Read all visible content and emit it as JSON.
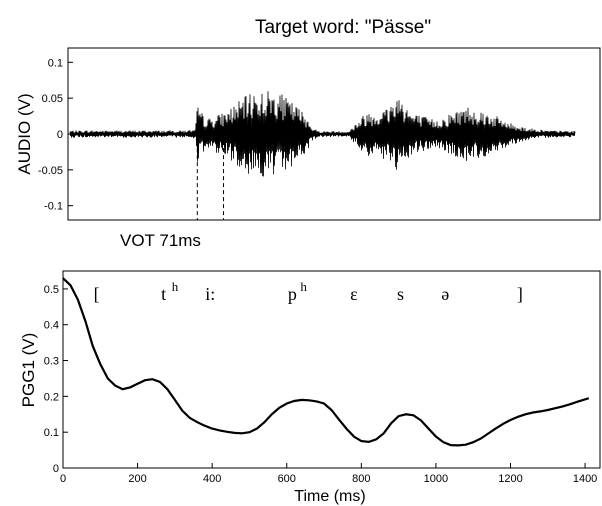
{
  "chart_data": [
    {
      "type": "line",
      "title": "Target word: \"Pässe\"",
      "xlabel": "",
      "ylabel": "AUDIO (V)",
      "ylim": [
        -0.12,
        0.12
      ],
      "yticks": [
        -0.1,
        -0.05,
        0,
        0.05,
        0.1
      ],
      "ytick_labels": [
        "-0.1",
        "-0.05",
        "0",
        "0.05",
        "0.1"
      ],
      "xlim": [
        0,
        1440
      ],
      "grid": false,
      "annotation": "VOT 71ms",
      "vot_markers_ms": [
        350,
        421
      ],
      "envelope": {
        "t": [
          0,
          300,
          345,
          350,
          365,
          380,
          420,
          460,
          500,
          560,
          600,
          640,
          665,
          680,
          690,
          760,
          790,
          810,
          840,
          870,
          890,
          905,
          930,
          980,
          1000,
          1030,
          1080,
          1140,
          1200,
          1250,
          1300,
          1380,
          1440
        ],
        "amp": [
          0.005,
          0.005,
          0.006,
          0.04,
          0.028,
          0.022,
          0.03,
          0.045,
          0.06,
          0.062,
          0.048,
          0.03,
          0.008,
          0.004,
          0.004,
          0.004,
          0.022,
          0.032,
          0.032,
          0.04,
          0.058,
          0.052,
          0.03,
          0.022,
          0.02,
          0.028,
          0.04,
          0.03,
          0.015,
          0.008,
          0.005,
          0.004,
          0.004
        ]
      }
    },
    {
      "type": "line",
      "xlabel": "Time (ms)",
      "ylabel": "PGG1 (V)",
      "xlim": [
        0,
        1440
      ],
      "ylim": [
        0,
        0.55
      ],
      "xticks": [
        0,
        200,
        400,
        600,
        800,
        1000,
        1200,
        1400
      ],
      "xtick_labels": [
        "0",
        "200",
        "400",
        "600",
        "800",
        "1000",
        "1200",
        "1400"
      ],
      "yticks": [
        0,
        0.1,
        0.2,
        0.3,
        0.4,
        0.5
      ],
      "ytick_labels": [
        "0",
        "0.1",
        "0.2",
        "0.3",
        "0.4",
        "0.5"
      ],
      "grid": false,
      "series": [
        {
          "x": [
            0,
            20,
            40,
            60,
            80,
            100,
            120,
            140,
            160,
            180,
            200,
            220,
            240,
            260,
            280,
            300,
            320,
            340,
            360,
            380,
            400,
            420,
            440,
            460,
            480,
            500,
            520,
            540,
            560,
            580,
            600,
            620,
            640,
            660,
            680,
            700,
            720,
            740,
            760,
            780,
            800,
            820,
            840,
            860,
            880,
            900,
            920,
            940,
            960,
            980,
            1000,
            1020,
            1040,
            1060,
            1080,
            1100,
            1120,
            1140,
            1160,
            1180,
            1200,
            1220,
            1240,
            1260,
            1280,
            1300,
            1320,
            1340,
            1360,
            1380,
            1410
          ],
          "y": [
            0.53,
            0.51,
            0.47,
            0.41,
            0.34,
            0.29,
            0.25,
            0.23,
            0.22,
            0.225,
            0.235,
            0.245,
            0.248,
            0.24,
            0.22,
            0.19,
            0.16,
            0.14,
            0.128,
            0.118,
            0.11,
            0.105,
            0.101,
            0.098,
            0.097,
            0.1,
            0.11,
            0.128,
            0.15,
            0.168,
            0.18,
            0.187,
            0.19,
            0.189,
            0.186,
            0.18,
            0.162,
            0.135,
            0.11,
            0.088,
            0.075,
            0.073,
            0.08,
            0.097,
            0.125,
            0.145,
            0.15,
            0.147,
            0.133,
            0.11,
            0.088,
            0.072,
            0.064,
            0.063,
            0.065,
            0.072,
            0.082,
            0.096,
            0.11,
            0.123,
            0.134,
            0.143,
            0.15,
            0.155,
            0.158,
            0.162,
            0.167,
            0.172,
            0.178,
            0.185,
            0.195
          ]
        }
      ],
      "transcription": [
        {
          "t_ms": 90,
          "base": "[",
          "sup": ""
        },
        {
          "t_ms": 270,
          "base": "t",
          "sup": "h"
        },
        {
          "t_ms": 395,
          "base": "i:",
          "sup": ""
        },
        {
          "t_ms": 615,
          "base": "p",
          "sup": "h"
        },
        {
          "t_ms": 780,
          "base": "ɛ",
          "sup": ""
        },
        {
          "t_ms": 905,
          "base": "s",
          "sup": ""
        },
        {
          "t_ms": 1025,
          "base": "ə",
          "sup": ""
        },
        {
          "t_ms": 1225,
          "base": "]",
          "sup": ""
        }
      ]
    }
  ]
}
